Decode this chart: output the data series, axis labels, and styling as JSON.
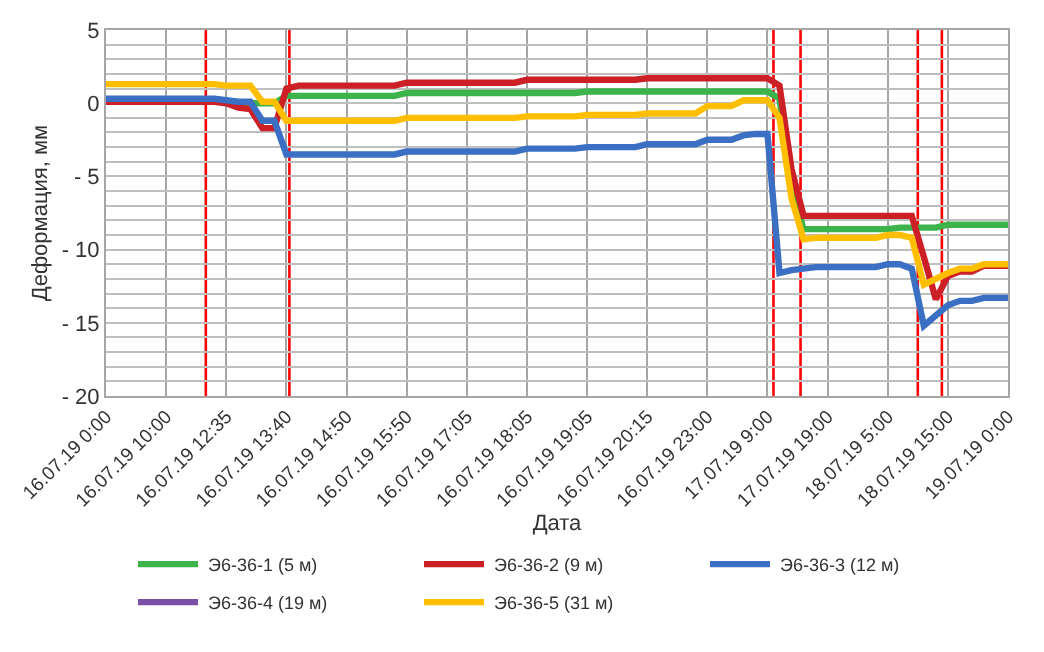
{
  "chart_data": {
    "type": "line",
    "xlabel": "Дата",
    "ylabel": "Деформация, мм",
    "categories": [
      "16.07.19 0:00",
      null,
      null,
      null,
      null,
      "16.07.19 10:00",
      null,
      null,
      null,
      null,
      "16.07.19 12:35",
      null,
      null,
      null,
      null,
      "16.07.19 13:40",
      null,
      null,
      null,
      null,
      "16.07.19 14:50",
      null,
      null,
      null,
      null,
      "16.07.19 15:50",
      null,
      null,
      null,
      null,
      "16.07.19 17:05",
      null,
      null,
      null,
      null,
      "16.07.19 18:05",
      null,
      null,
      null,
      null,
      "16.07.19 19:05",
      null,
      null,
      null,
      null,
      "16.07.19 20:15",
      null,
      null,
      null,
      null,
      "16.07.19 23:00",
      null,
      null,
      null,
      null,
      "17.07.19 9:00",
      null,
      null,
      null,
      null,
      "17.07.19 19:00",
      null,
      null,
      null,
      null,
      "18.07.19 5:00",
      null,
      null,
      null,
      null,
      "18.07.19 15:00",
      null,
      null,
      null,
      null,
      "19.07.19 0:00"
    ],
    "ylim": [
      -20,
      5
    ],
    "yticks": [
      5,
      {
        "value": 4,
        "label": null
      },
      {
        "value": 3,
        "label": null
      },
      {
        "value": 2,
        "label": null
      },
      {
        "value": 1,
        "label": null
      },
      0,
      {
        "value": -1,
        "label": null
      },
      {
        "value": -2,
        "label": null
      },
      {
        "value": -3,
        "label": null
      },
      {
        "value": -4,
        "label": null
      },
      -5,
      {
        "value": -6,
        "label": null
      },
      {
        "value": -7,
        "label": null
      },
      {
        "value": -8,
        "label": null
      },
      {
        "value": -9,
        "label": null
      },
      -10,
      {
        "value": -11,
        "label": null
      },
      {
        "value": -12,
        "label": null
      },
      {
        "value": -13,
        "label": null
      },
      {
        "value": -14,
        "label": null
      },
      -15,
      {
        "value": -16,
        "label": null
      },
      {
        "value": -17,
        "label": null
      },
      {
        "value": -18,
        "label": null
      },
      {
        "value": -19,
        "label": null
      },
      -20
    ],
    "grid": true,
    "legend": "bottom",
    "marker": "none",
    "line_style": "solid",
    "series": [
      {
        "name": "Э6-36-1 (5 м)",
        "color": "#3cb44b",
        "values": [
          null,
          null,
          null,
          null,
          null,
          null,
          null,
          null,
          null,
          null,
          0,
          0,
          0,
          0,
          0,
          0.5,
          0.5,
          0.5,
          0.5,
          0.5,
          0.5,
          0.5,
          0.5,
          0.5,
          0.5,
          0.7,
          0.7,
          0.7,
          0.7,
          0.7,
          0.7,
          0.7,
          0.7,
          0.7,
          0.7,
          0.7,
          0.7,
          0.7,
          0.7,
          0.7,
          0.8,
          0.8,
          0.8,
          0.8,
          0.8,
          0.8,
          0.8,
          0.8,
          0.8,
          0.8,
          0.8,
          0.8,
          0.8,
          0.8,
          0.8,
          0.8,
          0.3,
          -5.6,
          -8.6,
          -8.6,
          -8.6,
          -8.6,
          -8.6,
          -8.6,
          -8.6,
          -8.6,
          -8.5,
          -8.5,
          -8.5,
          -8.5,
          -8.3,
          -8.3,
          -8.3,
          -8.3,
          -8.3,
          -8.3
        ]
      },
      {
        "name": "Э6-36-2 (9 м)",
        "color": "#cc1f26",
        "values": [
          0.1,
          0.1,
          0.1,
          0.1,
          0.1,
          0.1,
          0.1,
          0.1,
          0.1,
          0.1,
          0,
          -0.3,
          -0.4,
          -1.7,
          -1.7,
          1.0,
          1.2,
          1.2,
          1.2,
          1.2,
          1.2,
          1.2,
          1.2,
          1.2,
          1.2,
          1.4,
          1.4,
          1.4,
          1.4,
          1.4,
          1.4,
          1.4,
          1.4,
          1.4,
          1.4,
          1.6,
          1.6,
          1.6,
          1.6,
          1.6,
          1.6,
          1.6,
          1.6,
          1.6,
          1.6,
          1.7,
          1.7,
          1.7,
          1.7,
          1.7,
          1.7,
          1.7,
          1.7,
          1.7,
          1.7,
          1.7,
          1.2,
          -4.5,
          -7.7,
          -7.7,
          -7.7,
          -7.7,
          -7.7,
          -7.7,
          -7.7,
          -7.7,
          -7.7,
          -7.7,
          -10.5,
          -13.4,
          -11.8,
          -11.5,
          -11.5,
          -11.1,
          -11.1,
          -11.1
        ]
      },
      {
        "name": "Э6-36-3 (12 м)",
        "color": "#3a6fc4",
        "values": [
          0.3,
          0.3,
          0.3,
          0.3,
          0.3,
          0.3,
          0.3,
          0.3,
          0.3,
          0.3,
          0.2,
          0.1,
          0.1,
          -1.2,
          -1.2,
          -3.5,
          -3.5,
          -3.5,
          -3.5,
          -3.5,
          -3.5,
          -3.5,
          -3.5,
          -3.5,
          -3.5,
          -3.3,
          -3.3,
          -3.3,
          -3.3,
          -3.3,
          -3.3,
          -3.3,
          -3.3,
          -3.3,
          -3.3,
          -3.1,
          -3.1,
          -3.1,
          -3.1,
          -3.1,
          -3.0,
          -3.0,
          -3.0,
          -3.0,
          -3.0,
          -2.8,
          -2.8,
          -2.8,
          -2.8,
          -2.8,
          -2.5,
          -2.5,
          -2.5,
          -2.2,
          -2.1,
          -2.1,
          -11.6,
          -11.4,
          -11.3,
          -11.2,
          -11.2,
          -11.2,
          -11.2,
          -11.2,
          -11.2,
          -11.0,
          -11.0,
          -11.3,
          -15.2,
          -14.5,
          -13.8,
          -13.5,
          -13.5,
          -13.3,
          -13.3,
          -13.3
        ]
      },
      {
        "name": "Э6-36-4 (19 м)",
        "color": "#7b4fa6",
        "values": [
          null,
          null,
          null,
          null,
          null,
          null,
          null,
          null,
          null,
          null,
          null,
          null,
          null,
          null,
          null,
          null,
          null,
          null,
          null,
          null,
          null,
          null,
          null,
          null,
          null,
          null,
          null,
          null,
          null,
          null,
          null,
          null,
          null,
          null,
          null,
          null,
          null,
          null,
          null,
          null,
          null,
          null,
          null,
          null,
          null,
          null,
          null,
          null,
          null,
          null,
          null,
          null,
          null,
          null,
          null,
          null,
          null,
          null,
          null,
          null,
          null,
          null,
          null,
          null,
          null,
          null,
          null,
          null,
          null,
          null,
          null,
          null,
          null,
          null,
          null,
          null
        ]
      },
      {
        "name": "Э6-36-5 (31 м)",
        "color": "#ffbf00",
        "values": [
          1.3,
          1.3,
          1.3,
          1.3,
          1.3,
          1.3,
          1.3,
          1.3,
          1.3,
          1.3,
          1.2,
          1.2,
          1.2,
          0.1,
          0.1,
          -1.2,
          -1.2,
          -1.2,
          -1.2,
          -1.2,
          -1.2,
          -1.2,
          -1.2,
          -1.2,
          -1.2,
          -1.0,
          -1.0,
          -1.0,
          -1.0,
          -1.0,
          -1.0,
          -1.0,
          -1.0,
          -1.0,
          -1.0,
          -0.9,
          -0.9,
          -0.9,
          -0.9,
          -0.9,
          -0.8,
          -0.8,
          -0.8,
          -0.8,
          -0.8,
          -0.7,
          -0.7,
          -0.7,
          -0.7,
          -0.7,
          -0.2,
          -0.2,
          -0.2,
          0.2,
          0.2,
          0.2,
          -1.0,
          -6.5,
          -9.3,
          -9.2,
          -9.2,
          -9.2,
          -9.2,
          -9.2,
          -9.2,
          -9.0,
          -9.0,
          -9.2,
          -12.4,
          -12.0,
          -11.6,
          -11.3,
          -11.3,
          -11.0,
          -11.0,
          -11.0
        ]
      }
    ]
  }
}
